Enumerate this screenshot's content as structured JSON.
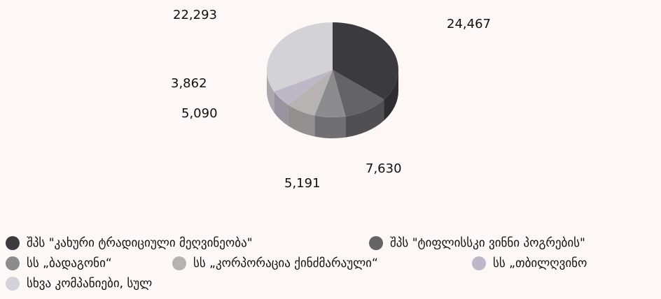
{
  "chart_data": {
    "type": "pie3d",
    "categories": [
      "შპს \"კახური ტრადიციული მეღვინეობა\"",
      "შპს \"ტიფლისსკი ვინნი პოგრების\"",
      "სს „ბადაგონი“",
      "სს „კორპორაცია ქინძმარაული“",
      "სს „თბილღვინო",
      "სხვა კომპანიები, სულ"
    ],
    "values": [
      24467,
      7630,
      5191,
      5090,
      3862,
      22293
    ],
    "value_labels": [
      "24,467",
      "7,630",
      "5,191",
      "5,090",
      "3,862",
      "22,293"
    ],
    "colors": [
      "#3a3a3f",
      "#646466",
      "#8c8c8e",
      "#b7b3b2",
      "#bdb8c7",
      "#d3d3d7"
    ],
    "legend": "bottom"
  }
}
